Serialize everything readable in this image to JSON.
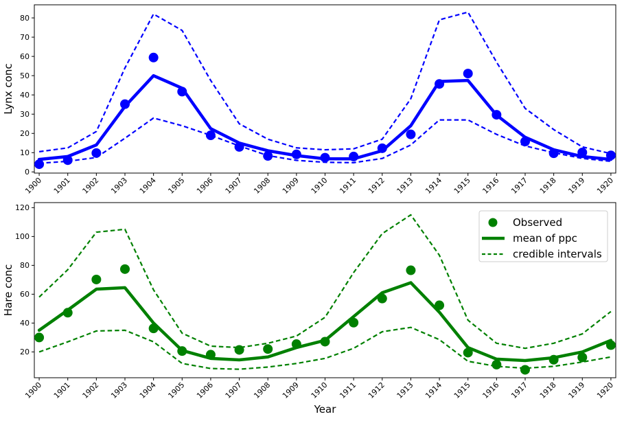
{
  "figure": {
    "xlabel": "Year",
    "background": "#ffffff",
    "axis_color": "#000000"
  },
  "legend": {
    "position": "upper right",
    "border_color": "#cccccc",
    "entries": [
      {
        "label": "Observed",
        "marker": "dot"
      },
      {
        "label": "mean of ppc",
        "marker": "solid-line"
      },
      {
        "label": "credible intervals",
        "marker": "dashed-line"
      }
    ]
  },
  "chart_data": [
    {
      "type": "line",
      "title": "",
      "ylabel": "Lynx conc",
      "xlabel": "",
      "color": "#0000ff",
      "grid": false,
      "x": [
        1900,
        1901,
        1902,
        1903,
        1904,
        1905,
        1906,
        1907,
        1908,
        1909,
        1910,
        1911,
        1912,
        1913,
        1914,
        1915,
        1916,
        1917,
        1918,
        1919,
        1920
      ],
      "xtick_labels": [
        "1900",
        "1901",
        "1902",
        "1903",
        "1904",
        "1905",
        "1906",
        "1907",
        "1908",
        "1909",
        "1910",
        "1911",
        "1912",
        "1913",
        "1914",
        "1915",
        "1916",
        "1917",
        "1918",
        "1919",
        "1920"
      ],
      "xlim": [
        1899.83,
        1920.17
      ],
      "ylim": [
        -0.6,
        86.8
      ],
      "yticks": [
        0,
        10,
        20,
        30,
        40,
        50,
        60,
        70,
        80
      ],
      "series": [
        {
          "name": "Observed",
          "style": "scatter",
          "values": [
            4.0,
            6.1,
            9.8,
            35.2,
            59.4,
            41.7,
            19.0,
            13.0,
            8.3,
            9.1,
            7.4,
            8.0,
            12.3,
            19.5,
            45.7,
            51.1,
            29.7,
            15.8,
            9.7,
            10.1,
            8.6
          ]
        },
        {
          "name": "mean of ppc",
          "style": "solid",
          "values": [
            6.5,
            8.0,
            14.0,
            34.0,
            50.0,
            43.5,
            22.5,
            15.0,
            11.0,
            8.5,
            6.8,
            6.8,
            11.0,
            24.0,
            47.0,
            47.5,
            29.5,
            18.0,
            11.5,
            8.0,
            6.5
          ]
        },
        {
          "name": "credible interval upper",
          "style": "dashed",
          "values": [
            10.5,
            12.5,
            21.0,
            54.0,
            82.0,
            73.5,
            47.5,
            25.0,
            17.0,
            12.5,
            11.5,
            12.0,
            17.0,
            38.0,
            79.0,
            83.0,
            57.0,
            33.0,
            22.0,
            13.0,
            9.5
          ]
        },
        {
          "name": "credible interval lower",
          "style": "dashed",
          "values": [
            4.5,
            5.5,
            7.5,
            17.5,
            28.0,
            24.0,
            19.0,
            13.5,
            8.5,
            6.0,
            5.0,
            4.8,
            7.0,
            14.0,
            27.0,
            27.0,
            19.5,
            13.5,
            10.0,
            7.0,
            5.5
          ]
        }
      ]
    },
    {
      "type": "line",
      "title": "",
      "ylabel": "Hare conc",
      "xlabel": "Year",
      "color": "#008000",
      "grid": false,
      "show_legend": true,
      "x": [
        1900,
        1901,
        1902,
        1903,
        1904,
        1905,
        1906,
        1907,
        1908,
        1909,
        1910,
        1911,
        1912,
        1913,
        1914,
        1915,
        1916,
        1917,
        1918,
        1919,
        1920
      ],
      "xtick_labels": [
        "1900",
        "1901",
        "1902",
        "1903",
        "1904",
        "1905",
        "1906",
        "1907",
        "1908",
        "1909",
        "1910",
        "1911",
        "1912",
        "1913",
        "1914",
        "1915",
        "1916",
        "1917",
        "1918",
        "1919",
        "1920"
      ],
      "xlim": [
        1899.83,
        1920.17
      ],
      "ylim": [
        2.1,
        123.5
      ],
      "yticks": [
        20,
        40,
        60,
        80,
        100,
        120
      ],
      "series": [
        {
          "name": "Observed",
          "style": "scatter",
          "values": [
            30.0,
            47.2,
            70.2,
            77.4,
            36.3,
            20.6,
            18.1,
            21.4,
            22.0,
            25.4,
            27.1,
            40.3,
            57.0,
            76.6,
            52.3,
            19.5,
            11.2,
            7.6,
            14.6,
            16.2,
            24.7
          ]
        },
        {
          "name": "mean of ppc",
          "style": "solid",
          "values": [
            35.0,
            49.0,
            63.5,
            64.5,
            40.0,
            21.0,
            15.5,
            14.5,
            16.5,
            23.0,
            28.0,
            44.5,
            61.0,
            68.0,
            47.5,
            23.0,
            15.0,
            14.0,
            16.0,
            20.0,
            28.0
          ]
        },
        {
          "name": "credible interval upper",
          "style": "dashed",
          "values": [
            58.0,
            77.0,
            103.0,
            105.0,
            63.0,
            33.0,
            24.0,
            23.0,
            26.0,
            31.0,
            44.0,
            75.0,
            102.0,
            115.0,
            87.0,
            42.0,
            26.0,
            22.5,
            26.0,
            32.5,
            48.0
          ]
        },
        {
          "name": "credible interval lower",
          "style": "dashed",
          "values": [
            20.0,
            27.0,
            34.5,
            35.0,
            27.0,
            12.0,
            8.5,
            8.0,
            9.5,
            12.0,
            15.5,
            22.5,
            34.0,
            37.0,
            28.5,
            13.5,
            10.0,
            8.7,
            10.0,
            13.0,
            16.5
          ]
        }
      ]
    }
  ]
}
